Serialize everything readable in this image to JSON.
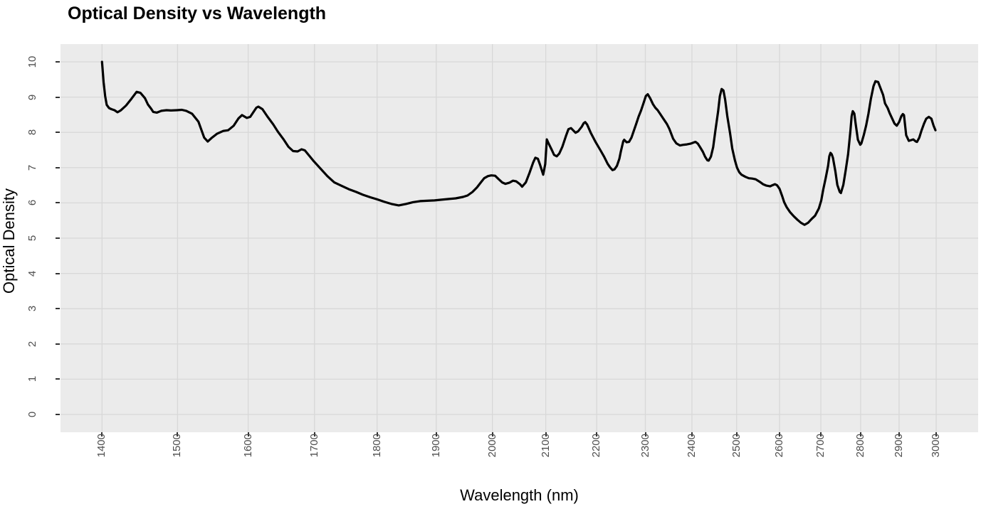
{
  "title": "Optical Density vs Wavelength",
  "x_axis": {
    "label": "Wavelength (nm)",
    "scale": "log10",
    "tick_values": [
      1400,
      1500,
      1600,
      1700,
      1800,
      1900,
      2000,
      2100,
      2200,
      2300,
      2400,
      2500,
      2600,
      2700,
      2800,
      2900,
      3000
    ],
    "tick_labels": [
      "1400",
      "1500",
      "1600",
      "1700",
      "1800",
      "1900",
      "2000",
      "2100",
      "2200",
      "2300",
      "2400",
      "2500",
      "2600",
      "2700",
      "2800",
      "2900",
      "3000"
    ],
    "label_rotation_deg": -90
  },
  "y_axis": {
    "label": "Optical Density",
    "tick_values": [
      0,
      1,
      2,
      3,
      4,
      5,
      6,
      7,
      8,
      9,
      10
    ],
    "tick_labels": [
      "0",
      "1",
      "2",
      "3",
      "4",
      "5",
      "6",
      "7",
      "8",
      "9",
      "10"
    ],
    "label_rotation_deg": -90
  },
  "colors": {
    "panel_background": "#EBEBEB",
    "grid_major": "#D8D8D8",
    "line": "#000000",
    "tick_label": "#4D4D4D",
    "tick_mark": "#333333",
    "title": "#000000",
    "page_background": "#FFFFFF"
  },
  "chart_data": {
    "type": "line",
    "title": "Optical Density vs Wavelength",
    "xlabel": "Wavelength (nm)",
    "ylabel": "Optical Density",
    "x_scale": "log",
    "xlim": [
      1400,
      3000
    ],
    "ylim": [
      0,
      10
    ],
    "grid": "major-only",
    "legend": "none",
    "series": [
      {
        "name": "Optical Density",
        "color": "#000000",
        "points": [
          [
            1400,
            10.0
          ],
          [
            1402,
            9.43
          ],
          [
            1404,
            9.03
          ],
          [
            1406,
            8.78
          ],
          [
            1409,
            8.69
          ],
          [
            1412,
            8.66
          ],
          [
            1416,
            8.63
          ],
          [
            1420,
            8.57
          ],
          [
            1424,
            8.62
          ],
          [
            1431,
            8.76
          ],
          [
            1438,
            8.95
          ],
          [
            1445,
            9.15
          ],
          [
            1450,
            9.12
          ],
          [
            1456,
            8.97
          ],
          [
            1460,
            8.79
          ],
          [
            1464,
            8.68
          ],
          [
            1467,
            8.58
          ],
          [
            1472,
            8.56
          ],
          [
            1478,
            8.61
          ],
          [
            1485,
            8.63
          ],
          [
            1491,
            8.62
          ],
          [
            1499,
            8.63
          ],
          [
            1506,
            8.64
          ],
          [
            1512,
            8.61
          ],
          [
            1520,
            8.53
          ],
          [
            1529,
            8.3
          ],
          [
            1537,
            7.85
          ],
          [
            1542,
            7.74
          ],
          [
            1548,
            7.85
          ],
          [
            1555,
            7.96
          ],
          [
            1564,
            8.04
          ],
          [
            1571,
            8.06
          ],
          [
            1579,
            8.19
          ],
          [
            1586,
            8.4
          ],
          [
            1591,
            8.49
          ],
          [
            1598,
            8.41
          ],
          [
            1603,
            8.44
          ],
          [
            1612,
            8.7
          ],
          [
            1615,
            8.73
          ],
          [
            1621,
            8.66
          ],
          [
            1628,
            8.46
          ],
          [
            1637,
            8.23
          ],
          [
            1644,
            8.02
          ],
          [
            1653,
            7.79
          ],
          [
            1660,
            7.59
          ],
          [
            1667,
            7.47
          ],
          [
            1674,
            7.46
          ],
          [
            1680,
            7.52
          ],
          [
            1685,
            7.49
          ],
          [
            1698,
            7.2
          ],
          [
            1709,
            6.98
          ],
          [
            1720,
            6.76
          ],
          [
            1731,
            6.58
          ],
          [
            1743,
            6.48
          ],
          [
            1754,
            6.39
          ],
          [
            1766,
            6.31
          ],
          [
            1777,
            6.23
          ],
          [
            1789,
            6.16
          ],
          [
            1800,
            6.1
          ],
          [
            1812,
            6.03
          ],
          [
            1824,
            5.97
          ],
          [
            1836,
            5.93
          ],
          [
            1848,
            5.97
          ],
          [
            1860,
            6.02
          ],
          [
            1872,
            6.05
          ],
          [
            1884,
            6.06
          ],
          [
            1897,
            6.07
          ],
          [
            1909,
            6.09
          ],
          [
            1922,
            6.11
          ],
          [
            1934,
            6.13
          ],
          [
            1947,
            6.17
          ],
          [
            1955,
            6.21
          ],
          [
            1964,
            6.31
          ],
          [
            1972,
            6.44
          ],
          [
            1979,
            6.58
          ],
          [
            1985,
            6.7
          ],
          [
            1992,
            6.76
          ],
          [
            1998,
            6.78
          ],
          [
            2005,
            6.77
          ],
          [
            2011,
            6.68
          ],
          [
            2018,
            6.58
          ],
          [
            2024,
            6.54
          ],
          [
            2031,
            6.57
          ],
          [
            2038,
            6.63
          ],
          [
            2044,
            6.61
          ],
          [
            2051,
            6.53
          ],
          [
            2055,
            6.46
          ],
          [
            2062,
            6.58
          ],
          [
            2069,
            6.85
          ],
          [
            2076,
            7.15
          ],
          [
            2080,
            7.28
          ],
          [
            2085,
            7.25
          ],
          [
            2089,
            7.08
          ],
          [
            2095,
            6.8
          ],
          [
            2099,
            7.1
          ],
          [
            2102,
            7.8
          ],
          [
            2105,
            7.7
          ],
          [
            2112,
            7.49
          ],
          [
            2116,
            7.36
          ],
          [
            2121,
            7.32
          ],
          [
            2126,
            7.4
          ],
          [
            2132,
            7.59
          ],
          [
            2139,
            7.9
          ],
          [
            2144,
            8.09
          ],
          [
            2149,
            8.12
          ],
          [
            2153,
            8.06
          ],
          [
            2158,
            7.99
          ],
          [
            2163,
            8.03
          ],
          [
            2170,
            8.16
          ],
          [
            2174,
            8.26
          ],
          [
            2177,
            8.29
          ],
          [
            2181,
            8.22
          ],
          [
            2188,
            7.99
          ],
          [
            2198,
            7.72
          ],
          [
            2208,
            7.48
          ],
          [
            2215,
            7.31
          ],
          [
            2222,
            7.11
          ],
          [
            2227,
            7.01
          ],
          [
            2232,
            6.93
          ],
          [
            2236,
            6.95
          ],
          [
            2241,
            7.05
          ],
          [
            2246,
            7.25
          ],
          [
            2249,
            7.45
          ],
          [
            2254,
            7.75
          ],
          [
            2256,
            7.79
          ],
          [
            2261,
            7.72
          ],
          [
            2266,
            7.73
          ],
          [
            2271,
            7.85
          ],
          [
            2276,
            8.05
          ],
          [
            2281,
            8.25
          ],
          [
            2286,
            8.45
          ],
          [
            2291,
            8.62
          ],
          [
            2296,
            8.82
          ],
          [
            2301,
            9.03
          ],
          [
            2305,
            9.08
          ],
          [
            2310,
            8.97
          ],
          [
            2316,
            8.8
          ],
          [
            2321,
            8.7
          ],
          [
            2326,
            8.63
          ],
          [
            2331,
            8.53
          ],
          [
            2336,
            8.43
          ],
          [
            2341,
            8.33
          ],
          [
            2346,
            8.23
          ],
          [
            2351,
            8.1
          ],
          [
            2359,
            7.82
          ],
          [
            2366,
            7.69
          ],
          [
            2374,
            7.63
          ],
          [
            2382,
            7.65
          ],
          [
            2389,
            7.66
          ],
          [
            2397,
            7.68
          ],
          [
            2405,
            7.72
          ],
          [
            2408,
            7.73
          ],
          [
            2413,
            7.68
          ],
          [
            2418,
            7.58
          ],
          [
            2424,
            7.45
          ],
          [
            2429,
            7.31
          ],
          [
            2434,
            7.21
          ],
          [
            2437,
            7.2
          ],
          [
            2442,
            7.31
          ],
          [
            2447,
            7.58
          ],
          [
            2452,
            8.05
          ],
          [
            2458,
            8.59
          ],
          [
            2462,
            9.03
          ],
          [
            2466,
            9.23
          ],
          [
            2470,
            9.19
          ],
          [
            2474,
            8.93
          ],
          [
            2479,
            8.45
          ],
          [
            2485,
            7.98
          ],
          [
            2490,
            7.54
          ],
          [
            2496,
            7.21
          ],
          [
            2501,
            7.0
          ],
          [
            2506,
            6.87
          ],
          [
            2511,
            6.8
          ],
          [
            2520,
            6.74
          ],
          [
            2528,
            6.7
          ],
          [
            2536,
            6.69
          ],
          [
            2544,
            6.67
          ],
          [
            2553,
            6.6
          ],
          [
            2561,
            6.53
          ],
          [
            2569,
            6.49
          ],
          [
            2578,
            6.47
          ],
          [
            2583,
            6.5
          ],
          [
            2589,
            6.53
          ],
          [
            2594,
            6.5
          ],
          [
            2600,
            6.4
          ],
          [
            2606,
            6.2
          ],
          [
            2611,
            6.02
          ],
          [
            2617,
            5.88
          ],
          [
            2625,
            5.74
          ],
          [
            2634,
            5.62
          ],
          [
            2643,
            5.52
          ],
          [
            2651,
            5.44
          ],
          [
            2660,
            5.38
          ],
          [
            2669,
            5.44
          ],
          [
            2677,
            5.54
          ],
          [
            2686,
            5.64
          ],
          [
            2695,
            5.84
          ],
          [
            2701,
            6.07
          ],
          [
            2706,
            6.38
          ],
          [
            2712,
            6.71
          ],
          [
            2718,
            7.05
          ],
          [
            2721,
            7.32
          ],
          [
            2724,
            7.42
          ],
          [
            2727,
            7.38
          ],
          [
            2730,
            7.28
          ],
          [
            2736,
            6.9
          ],
          [
            2741,
            6.51
          ],
          [
            2747,
            6.31
          ],
          [
            2750,
            6.28
          ],
          [
            2756,
            6.51
          ],
          [
            2762,
            6.92
          ],
          [
            2768,
            7.38
          ],
          [
            2774,
            8.05
          ],
          [
            2777,
            8.46
          ],
          [
            2780,
            8.6
          ],
          [
            2784,
            8.53
          ],
          [
            2787,
            8.26
          ],
          [
            2793,
            7.79
          ],
          [
            2799,
            7.65
          ],
          [
            2802,
            7.69
          ],
          [
            2808,
            7.92
          ],
          [
            2814,
            8.19
          ],
          [
            2820,
            8.53
          ],
          [
            2826,
            8.94
          ],
          [
            2833,
            9.31
          ],
          [
            2838,
            9.45
          ],
          [
            2845,
            9.43
          ],
          [
            2851,
            9.26
          ],
          [
            2858,
            9.06
          ],
          [
            2863,
            8.82
          ],
          [
            2870,
            8.69
          ],
          [
            2875,
            8.55
          ],
          [
            2882,
            8.39
          ],
          [
            2888,
            8.25
          ],
          [
            2894,
            8.19
          ],
          [
            2900,
            8.29
          ],
          [
            2906,
            8.46
          ],
          [
            2910,
            8.52
          ],
          [
            2913,
            8.49
          ],
          [
            2919,
            7.92
          ],
          [
            2926,
            7.76
          ],
          [
            2932,
            7.78
          ],
          [
            2938,
            7.8
          ],
          [
            2945,
            7.74
          ],
          [
            2948,
            7.73
          ],
          [
            2954,
            7.85
          ],
          [
            2960,
            8.05
          ],
          [
            2967,
            8.25
          ],
          [
            2973,
            8.39
          ],
          [
            2980,
            8.44
          ],
          [
            2987,
            8.39
          ],
          [
            2993,
            8.19
          ],
          [
            2998,
            8.06
          ]
        ]
      }
    ]
  }
}
